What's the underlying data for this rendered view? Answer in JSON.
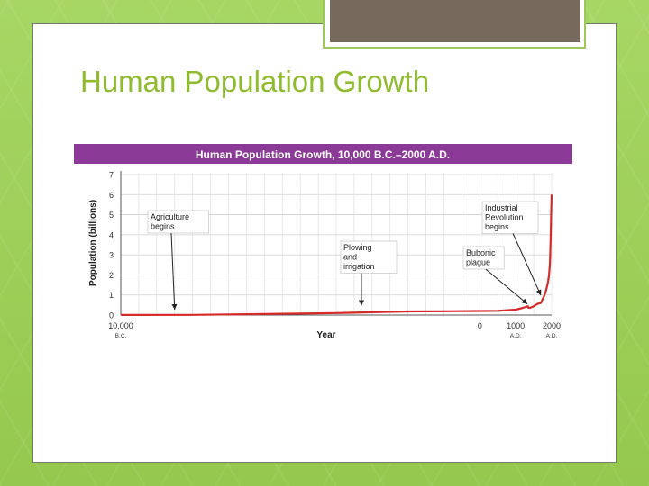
{
  "slide": {
    "title": "Human Population Growth"
  },
  "colors": {
    "title_text": "#8fbb2f",
    "chart_banner": "#8c3a97",
    "line": "#d42a2a",
    "background": "#9fcf5a",
    "frame_accent": "#756a5b"
  },
  "chart_data": {
    "type": "line",
    "title": "Human Population Growth, 10,000 B.C.–2000 A.D.",
    "xlabel": "Year",
    "ylabel": "Population (billions)",
    "xlim": [
      -10000,
      2000
    ],
    "ylim": [
      0,
      7
    ],
    "grid": true,
    "yticks": [
      0,
      1,
      2,
      3,
      4,
      5,
      6,
      7
    ],
    "xticks": [
      {
        "value": -10000,
        "label": "10,000",
        "sublabel": "B.C."
      },
      {
        "value": 0,
        "label": "0",
        "sublabel": ""
      },
      {
        "value": 1000,
        "label": "1000",
        "sublabel": "A.D."
      },
      {
        "value": 2000,
        "label": "2000",
        "sublabel": "A.D."
      }
    ],
    "series": [
      {
        "x": [
          -10000,
          -8000,
          -6000,
          -5000,
          -4000,
          -3000,
          -2000,
          -1000,
          0,
          500,
          1000,
          1200,
          1340,
          1350,
          1400,
          1500,
          1600,
          1700,
          1750,
          1800,
          1850,
          1900,
          1927,
          1950,
          1960,
          1970,
          1980,
          1990,
          2000
        ],
        "y": [
          0.005,
          0.01,
          0.05,
          0.07,
          0.1,
          0.14,
          0.18,
          0.19,
          0.2,
          0.21,
          0.27,
          0.36,
          0.44,
          0.37,
          0.36,
          0.44,
          0.55,
          0.6,
          0.79,
          0.98,
          1.26,
          1.65,
          2.0,
          2.5,
          3.0,
          3.7,
          4.4,
          5.3,
          6.0
        ]
      }
    ],
    "annotations": [
      {
        "text": [
          "Agriculture",
          "begins"
        ],
        "x": -8500,
        "y": 0
      },
      {
        "text": [
          "Plowing",
          "and",
          "irrigation"
        ],
        "x": -3500,
        "y": 0.2
      },
      {
        "text": [
          "Industrial",
          "Revolution",
          "begins"
        ],
        "x": 1750,
        "y": 0.8
      },
      {
        "text": [
          "Bubonic",
          "plague"
        ],
        "x": 1350,
        "y": 0.37
      }
    ]
  }
}
